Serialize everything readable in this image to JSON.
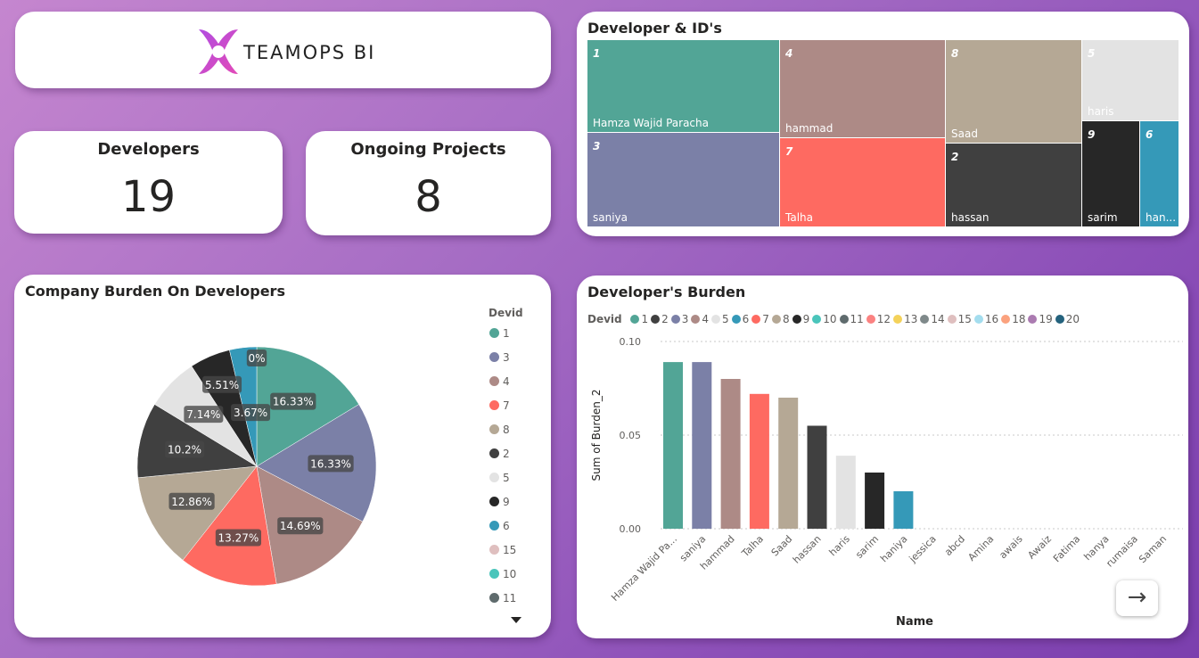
{
  "logo": {
    "text": "TEAMOPS BI"
  },
  "kpis": {
    "developers": {
      "label": "Developers",
      "value": "19"
    },
    "projects": {
      "label": "Ongoing Projects",
      "value": "8"
    }
  },
  "treemap": {
    "title": "Developer & ID's",
    "cells": [
      {
        "id": "1",
        "name": "Hamza Wajid Paracha",
        "color": "#52a596"
      },
      {
        "id": "3",
        "name": "saniya",
        "color": "#7b80a7"
      },
      {
        "id": "4",
        "name": "hammad",
        "color": "#ad8a86"
      },
      {
        "id": "7",
        "name": "Talha",
        "color": "#fe6a61"
      },
      {
        "id": "8",
        "name": "Saad",
        "color": "#b5a895"
      },
      {
        "id": "2",
        "name": "hassan",
        "color": "#404040"
      },
      {
        "id": "5",
        "name": "haris",
        "color": "#e3e3e3"
      },
      {
        "id": "9",
        "name": "sarim",
        "color": "#272727"
      },
      {
        "id": "6",
        "name": "han...",
        "color": "#3599b8"
      }
    ]
  },
  "pie": {
    "title": "Company Burden On Developers",
    "legend_title": "Devid",
    "legend": [
      {
        "id": "1",
        "color": "#52a596"
      },
      {
        "id": "3",
        "color": "#7b80a7"
      },
      {
        "id": "4",
        "color": "#ad8a86"
      },
      {
        "id": "7",
        "color": "#fe6a61"
      },
      {
        "id": "8",
        "color": "#b5a895"
      },
      {
        "id": "2",
        "color": "#404040"
      },
      {
        "id": "5",
        "color": "#e3e3e3"
      },
      {
        "id": "9",
        "color": "#272727"
      },
      {
        "id": "6",
        "color": "#3599b8"
      },
      {
        "id": "15",
        "color": "#dfbfbf"
      },
      {
        "id": "10",
        "color": "#4ac5bb"
      },
      {
        "id": "11",
        "color": "#5f6b6d"
      }
    ],
    "scroll_icon": "triangle-down-icon"
  },
  "bar": {
    "title": "Developer's Burden",
    "legend_title": "Devid",
    "legend": [
      {
        "id": "1",
        "color": "#52a596"
      },
      {
        "id": "2",
        "color": "#404040"
      },
      {
        "id": "3",
        "color": "#7b80a7"
      },
      {
        "id": "4",
        "color": "#ad8a86"
      },
      {
        "id": "5",
        "color": "#e3e3e3"
      },
      {
        "id": "6",
        "color": "#3599b8"
      },
      {
        "id": "7",
        "color": "#fe6a61"
      },
      {
        "id": "8",
        "color": "#b5a895"
      },
      {
        "id": "9",
        "color": "#272727"
      },
      {
        "id": "10",
        "color": "#4ac5bb"
      },
      {
        "id": "11",
        "color": "#5f6b6d"
      },
      {
        "id": "12",
        "color": "#fb8281"
      },
      {
        "id": "13",
        "color": "#f4d25a"
      },
      {
        "id": "14",
        "color": "#7f898a"
      },
      {
        "id": "15",
        "color": "#dfbfbf"
      },
      {
        "id": "16",
        "color": "#a4ddee"
      },
      {
        "id": "18",
        "color": "#fba27e"
      },
      {
        "id": "19",
        "color": "#ab7bb1"
      },
      {
        "id": "20",
        "color": "#24627d"
      }
    ],
    "arrow_icon": "arrow-right-icon"
  },
  "chart_data": [
    {
      "type": "pie",
      "title": "Company Burden On Developers",
      "legend_title": "Devid",
      "series": [
        {
          "name": "1",
          "value": 16.33,
          "label": "16.33%",
          "color": "#52a596"
        },
        {
          "name": "3",
          "value": 16.33,
          "label": "16.33%",
          "color": "#7b80a7"
        },
        {
          "name": "4",
          "value": 14.69,
          "label": "14.69%",
          "color": "#ad8a86"
        },
        {
          "name": "7",
          "value": 13.27,
          "label": "13.27%",
          "color": "#fe6a61"
        },
        {
          "name": "8",
          "value": 12.86,
          "label": "12.86%",
          "color": "#b5a895"
        },
        {
          "name": "2",
          "value": 10.2,
          "label": "10.2%",
          "color": "#404040"
        },
        {
          "name": "5",
          "value": 7.14,
          "label": "7.14%",
          "color": "#e3e3e3"
        },
        {
          "name": "9",
          "value": 5.51,
          "label": "5.51%",
          "color": "#272727"
        },
        {
          "name": "6",
          "value": 3.67,
          "label": "3.67%",
          "color": "#3599b8"
        },
        {
          "name": "15",
          "value": 0,
          "label": "0%",
          "color": "#dfbfbf"
        }
      ]
    },
    {
      "type": "bar",
      "title": "Developer's Burden",
      "xlabel": "Name",
      "ylabel": "Sum of Burden_2",
      "ylim": [
        0,
        0.1
      ],
      "yticks": [
        "0.00",
        "0.05",
        "0.10"
      ],
      "ytick_values": [
        0,
        0.05,
        0.1
      ],
      "grid": true,
      "categories": [
        "Hamza Wajid Pa...",
        "saniya",
        "hammad",
        "Talha",
        "Saad",
        "hassan",
        "haris",
        "sarim",
        "haniya",
        "jessica",
        "abcd",
        "Amina",
        "awais",
        "Awaiz",
        "Fatima",
        "hanya",
        "rumaisa",
        "Saman"
      ],
      "values": [
        0.089,
        0.089,
        0.08,
        0.072,
        0.07,
        0.055,
        0.039,
        0.03,
        0.02,
        0,
        0,
        0,
        0,
        0,
        0,
        0,
        0,
        0
      ],
      "colors": [
        "#52a596",
        "#7b80a7",
        "#ad8a86",
        "#fe6a61",
        "#b5a895",
        "#404040",
        "#e3e3e3",
        "#272727",
        "#3599b8",
        "#dfbfbf",
        "#dfbfbf",
        "#dfbfbf",
        "#dfbfbf",
        "#dfbfbf",
        "#dfbfbf",
        "#dfbfbf",
        "#dfbfbf",
        "#dfbfbf"
      ]
    }
  ]
}
